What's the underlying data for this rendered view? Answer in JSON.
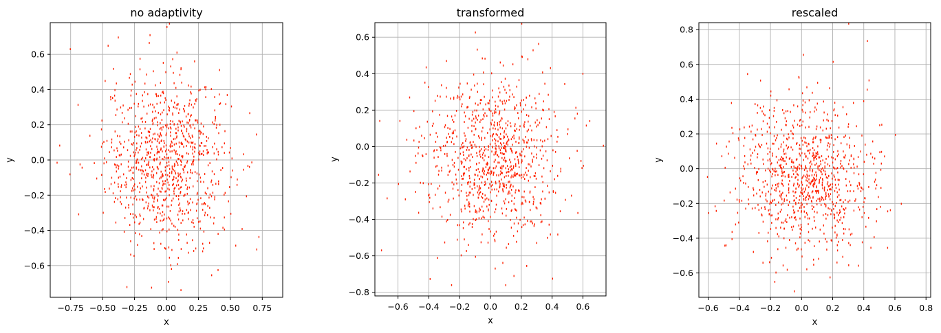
{
  "chart_data": [
    {
      "type": "scatter",
      "title": "no adaptivity",
      "xlabel": "x",
      "ylabel": "y",
      "xlim": [
        -0.91,
        0.91
      ],
      "ylim": [
        -0.78,
        0.78
      ],
      "xticks": [
        -0.75,
        -0.5,
        -0.25,
        0.0,
        0.25,
        0.5,
        0.75
      ],
      "xtick_labels": [
        "−0.75",
        "−0.50",
        "−0.25",
        "0.00",
        "0.25",
        "0.50",
        "0.75"
      ],
      "yticks": [
        -0.6,
        -0.4,
        -0.2,
        0.0,
        0.2,
        0.4,
        0.6
      ],
      "ytick_labels": [
        "−0.6",
        "−0.4",
        "−0.2",
        "0.0",
        "0.2",
        "0.4",
        "0.6"
      ],
      "grid": true,
      "marker_color": "#ff2200",
      "points": [
        [
          -0.2,
          0.1
        ],
        [
          0.1,
          0.08
        ],
        [
          0.05,
          -0.05
        ],
        [
          -0.08,
          -0.12
        ],
        [
          0.18,
          0.2
        ],
        [
          0.02,
          0.3
        ],
        [
          -0.3,
          -0.25
        ],
        [
          0.3,
          -0.18
        ],
        [
          0.45,
          0.1
        ],
        [
          -0.45,
          0.05
        ],
        [
          0.0,
          -0.4
        ],
        [
          0.12,
          -0.3
        ],
        [
          -0.15,
          0.38
        ],
        [
          0.25,
          0.4
        ],
        [
          -0.55,
          -0.1
        ],
        [
          0.6,
          -0.05
        ],
        [
          -0.35,
          0.22
        ],
        [
          0.38,
          0.25
        ],
        [
          -0.1,
          -0.5
        ],
        [
          0.2,
          -0.45
        ],
        [
          0.7,
          0.15
        ],
        [
          -0.68,
          -0.02
        ],
        [
          0.05,
          0.5
        ],
        [
          -0.05,
          0.15
        ],
        [
          0.15,
          -0.1
        ],
        [
          -0.22,
          -0.05
        ],
        [
          0.32,
          0.05
        ],
        [
          -0.4,
          -0.35
        ],
        [
          0.5,
          -0.3
        ],
        [
          -0.25,
          0.45
        ],
        [
          0.92,
          -0.37
        ],
        [
          -0.86,
          -0.01
        ],
        [
          0.02,
          0.78
        ],
        [
          -0.12,
          -0.72
        ],
        [
          0.4,
          -0.62
        ]
      ]
    },
    {
      "type": "scatter",
      "title": "transformed",
      "xlabel": "x",
      "ylabel": "y",
      "xlim": [
        -0.75,
        0.75
      ],
      "ylim": [
        -0.82,
        0.68
      ],
      "xticks": [
        -0.6,
        -0.4,
        -0.2,
        0.0,
        0.2,
        0.4,
        0.6
      ],
      "xtick_labels": [
        "−0.6",
        "−0.4",
        "−0.2",
        "0.0",
        "0.2",
        "0.4",
        "0.6"
      ],
      "yticks": [
        -0.8,
        -0.6,
        -0.4,
        -0.2,
        0.0,
        0.2,
        0.4,
        0.6
      ],
      "ytick_labels": [
        "−0.8",
        "−0.6",
        "−0.4",
        "−0.2",
        "0.0",
        "0.2",
        "0.4",
        "0.6"
      ],
      "grid": true,
      "marker_color": "#ff2200",
      "points": [
        [
          0.05,
          -0.05
        ],
        [
          -0.1,
          0.1
        ],
        [
          0.15,
          0.05
        ],
        [
          0.2,
          -0.15
        ],
        [
          -0.15,
          -0.2
        ],
        [
          0.0,
          0.2
        ],
        [
          0.1,
          0.3
        ],
        [
          -0.25,
          0.05
        ],
        [
          0.3,
          0.15
        ],
        [
          0.25,
          -0.3
        ],
        [
          -0.05,
          -0.35
        ],
        [
          0.4,
          -0.1
        ],
        [
          -0.35,
          -0.1
        ],
        [
          0.08,
          0.45
        ],
        [
          -0.2,
          0.35
        ],
        [
          0.35,
          0.35
        ],
        [
          -0.4,
          -0.3
        ],
        [
          0.1,
          -0.55
        ],
        [
          0.5,
          0.1
        ],
        [
          -0.5,
          0.2
        ],
        [
          0.2,
          0.5
        ],
        [
          -0.1,
          -0.6
        ],
        [
          0.45,
          -0.35
        ],
        [
          0.6,
          -0.1
        ],
        [
          -0.6,
          -0.2
        ],
        [
          0.73,
          0.01
        ],
        [
          -0.42,
          0.44
        ],
        [
          0.4,
          -0.72
        ],
        [
          -0.41,
          -0.82
        ],
        [
          0.2,
          0.68
        ]
      ]
    },
    {
      "type": "scatter",
      "title": "rescaled",
      "xlabel": "x",
      "ylabel": "y",
      "xlim": [
        -0.66,
        0.83
      ],
      "ylim": [
        -0.74,
        0.84
      ],
      "xticks": [
        -0.6,
        -0.4,
        -0.2,
        0.0,
        0.2,
        0.4,
        0.6,
        0.8
      ],
      "xtick_labels": [
        "−0.6",
        "−0.4",
        "−0.2",
        "0.0",
        "0.2",
        "0.4",
        "0.6",
        "0.8"
      ],
      "yticks": [
        -0.6,
        -0.4,
        -0.2,
        0.0,
        0.2,
        0.4,
        0.6,
        0.8
      ],
      "ytick_labels": [
        "−0.6",
        "−0.4",
        "−0.2",
        "0.0",
        "0.2",
        "0.4",
        "0.6",
        "0.8"
      ],
      "grid": true,
      "marker_color": "#ff2200",
      "points": [
        [
          0.0,
          -0.05
        ],
        [
          0.1,
          0.1
        ],
        [
          -0.1,
          -0.15
        ],
        [
          0.2,
          -0.2
        ],
        [
          -0.15,
          0.12
        ],
        [
          0.05,
          0.3
        ],
        [
          0.25,
          0.05
        ],
        [
          -0.25,
          -0.3
        ],
        [
          0.15,
          -0.4
        ],
        [
          -0.3,
          0.2
        ],
        [
          0.35,
          0.25
        ],
        [
          0.0,
          -0.5
        ],
        [
          -0.4,
          -0.05
        ],
        [
          0.4,
          -0.25
        ],
        [
          0.1,
          0.5
        ],
        [
          -0.2,
          0.45
        ],
        [
          0.3,
          -0.55
        ],
        [
          -0.45,
          -0.4
        ],
        [
          0.5,
          0.1
        ],
        [
          -0.55,
          0.15
        ],
        [
          0.55,
          -0.45
        ],
        [
          0.2,
          0.62
        ],
        [
          -0.35,
          0.55
        ],
        [
          0.42,
          0.74
        ],
        [
          0.83,
          0.03
        ],
        [
          0.3,
          0.84
        ],
        [
          0.18,
          -0.62
        ],
        [
          -0.6,
          -0.25
        ],
        [
          0.6,
          0.2
        ],
        [
          -0.05,
          -0.7
        ]
      ]
    }
  ]
}
